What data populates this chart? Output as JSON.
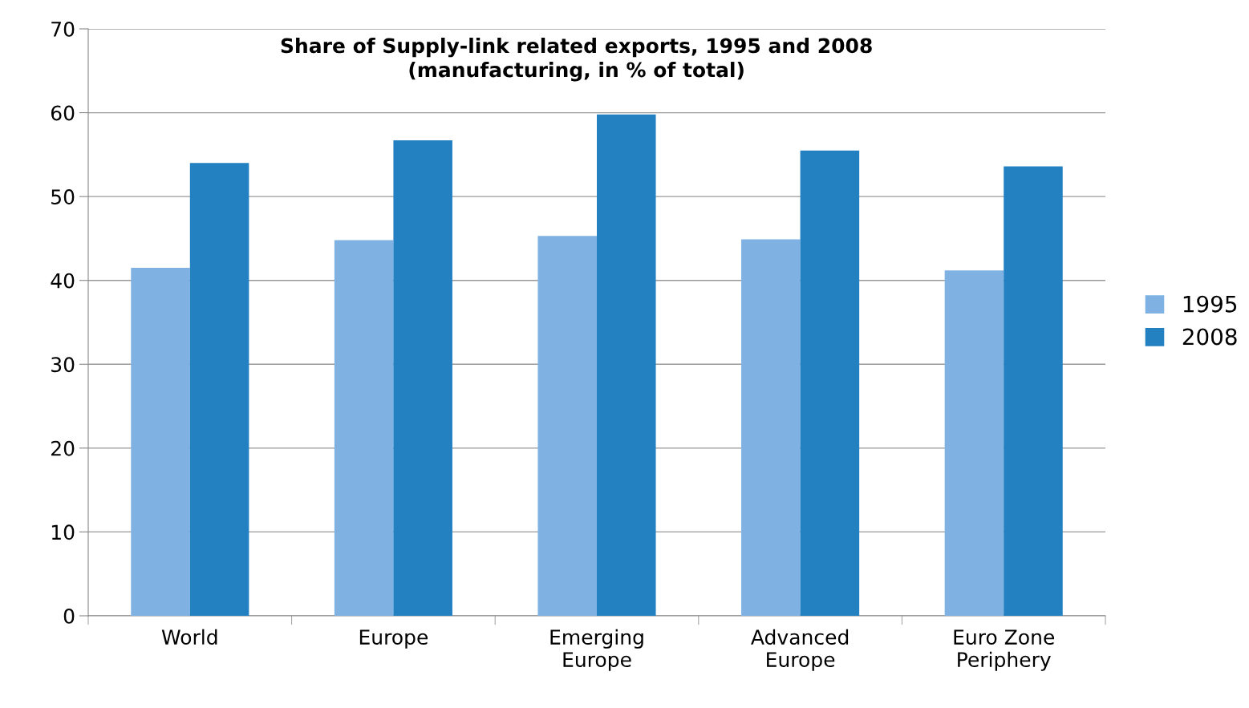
{
  "chart_data": {
    "type": "bar",
    "title": "Share of Supply-link related exports, 1995 and 2008\n(manufacturing, in % of total)",
    "categories": [
      "World",
      "Europe",
      "Emerging\nEurope",
      "Advanced\nEurope",
      "Euro Zone\nPeriphery"
    ],
    "series": [
      {
        "name": "1995",
        "color": "#7fb2e3",
        "values": [
          41.5,
          44.8,
          45.3,
          44.9,
          41.2
        ]
      },
      {
        "name": "2008",
        "color": "#2381c2",
        "values": [
          54.0,
          56.7,
          59.8,
          55.5,
          53.6
        ]
      }
    ],
    "ylim": [
      0,
      70
    ],
    "yticks": [
      0,
      10,
      20,
      30,
      40,
      50,
      60,
      70
    ],
    "grid": "y",
    "legend": "right"
  }
}
